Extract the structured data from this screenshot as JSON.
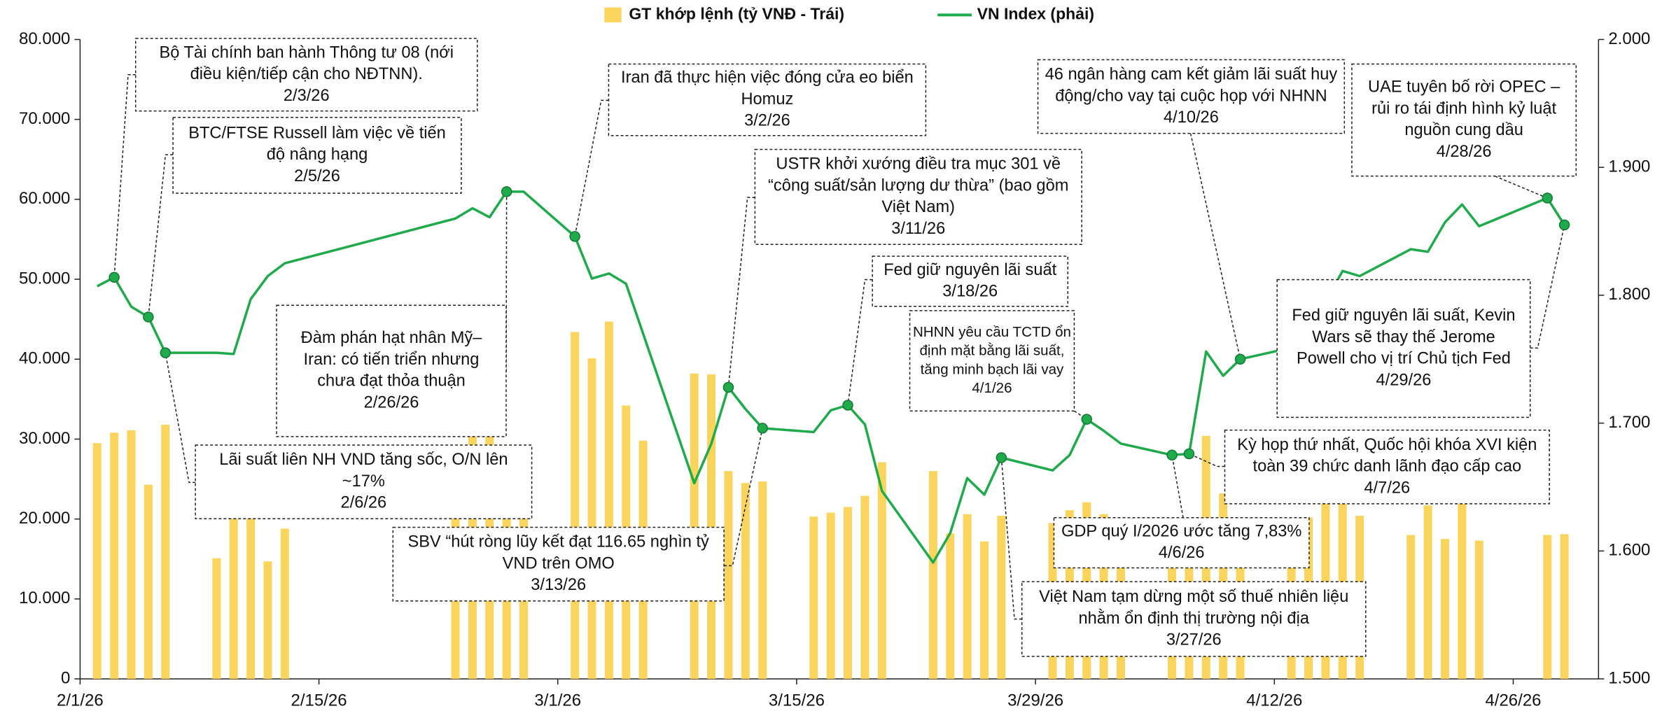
{
  "chart_data": {
    "type": "bar-line",
    "x": [
      "2/2/26",
      "2/3/26",
      "2/4/26",
      "2/5/26",
      "2/6/26",
      "2/9/26",
      "2/10/26",
      "2/11/26",
      "2/12/26",
      "2/13/26",
      "2/23/26",
      "2/24/26",
      "2/25/26",
      "2/26/26",
      "2/27/26",
      "3/2/26",
      "3/3/26",
      "3/4/26",
      "3/5/26",
      "3/6/26",
      "3/9/26",
      "3/10/26",
      "3/11/26",
      "3/12/26",
      "3/13/26",
      "3/16/26",
      "3/17/26",
      "3/18/26",
      "3/19/26",
      "3/20/26",
      "3/23/26",
      "3/24/26",
      "3/25/26",
      "3/26/26",
      "3/27/26",
      "3/30/26",
      "3/31/26",
      "4/1/26",
      "4/2/26",
      "4/3/26",
      "4/6/26",
      "4/7/26",
      "4/8/26",
      "4/9/26",
      "4/10/26",
      "4/13/26",
      "4/14/26",
      "4/15/26",
      "4/16/26",
      "4/17/26",
      "4/20/26",
      "4/21/26",
      "4/22/26",
      "4/23/26",
      "4/24/26",
      "4/28/26",
      "4/29/26"
    ],
    "series": [
      {
        "name": "GT khớp lệnh (tỷ VNĐ - Trái)",
        "color": "#fbd45e",
        "kind": "bar",
        "values": [
          29500,
          30800,
          31100,
          24300,
          31800,
          15100,
          23600,
          24000,
          14700,
          18800,
          22600,
          31200,
          35700,
          25000,
          27300,
          43400,
          40100,
          44700,
          34200,
          29800,
          38200,
          38100,
          26000,
          24500,
          24700,
          20300,
          20800,
          21500,
          22900,
          27100,
          26000,
          18200,
          20600,
          17200,
          20400,
          19500,
          21100,
          22100,
          20600,
          19000,
          14500,
          16000,
          30400,
          23200,
          19000,
          17500,
          20200,
          22000,
          24200,
          20400,
          18000,
          21700,
          17500,
          26900,
          17300,
          18000,
          18100
        ]
      },
      {
        "name": "VN Index (phải)",
        "color": "#1fab4b",
        "kind": "line",
        "axis": "y2",
        "values": [
          1807,
          1814,
          1791,
          1783,
          1755,
          1755,
          1754,
          1797,
          1815,
          1825,
          1860,
          1868,
          1861,
          1881,
          1881,
          1846,
          1813,
          1817,
          1809,
          1770,
          1653,
          1684,
          1728,
          1711,
          1696,
          1693,
          1710,
          1714,
          1699,
          1647,
          1591,
          1614,
          1657,
          1644,
          1673,
          1663,
          1675,
          1703,
          1694,
          1684,
          1675,
          1676,
          1756,
          1737,
          1750,
          1759,
          1776,
          1795,
          1819,
          1815,
          1836,
          1834,
          1857,
          1871,
          1854,
          1876,
          1855
        ]
      }
    ],
    "xlim": [
      "2/1/26",
      "5/1/26"
    ],
    "xticks": [
      "2/1/26",
      "2/15/26",
      "3/1/26",
      "3/15/26",
      "3/29/26",
      "4/12/26",
      "4/26/26"
    ],
    "ylim": [
      0,
      80000
    ],
    "yticks": [
      0,
      {
        "value": 10000,
        "label": "10.000"
      },
      {
        "value": 20000,
        "label": "20.000"
      },
      {
        "value": 30000,
        "label": "30.000"
      },
      {
        "value": 40000,
        "label": "40.000"
      },
      {
        "value": 50000,
        "label": "50.000"
      },
      {
        "value": 60000,
        "label": "60.000"
      },
      {
        "value": 70000,
        "label": "70.000"
      },
      {
        "value": 80000,
        "label": "80.000"
      }
    ],
    "y2lim": [
      1500,
      2000
    ],
    "y2ticks": [
      {
        "value": 1500,
        "label": "1.500"
      },
      {
        "value": 1600,
        "label": "1.600"
      },
      {
        "value": 1700,
        "label": "1.700"
      },
      {
        "value": 1800,
        "label": "1.800"
      },
      {
        "value": 1900,
        "label": "1.900"
      },
      {
        "value": 2000,
        "label": "2.000"
      }
    ],
    "annotations": [
      {
        "text": [
          "Bộ Tài chính ban hành Thông tư 08 (nới",
          "điều kiện/tiếp cận cho NĐTNN)."
        ],
        "date": "2/3/26"
      },
      {
        "text": [
          "BTC/FTSE Russell làm việc về tiến",
          "độ nâng hạng"
        ],
        "date": "2/5/26"
      },
      {
        "text": [
          "Lãi suất liên NH VND tăng sốc, O/N lên",
          "~17%"
        ],
        "date": "2/6/26"
      },
      {
        "text": [
          "Đàm phán hạt nhân Mỹ–",
          "Iran: có tiến triển nhưng",
          "chưa đạt thỏa thuận"
        ],
        "date": "2/26/26"
      },
      {
        "text": [
          "Iran đã thực hiện việc đóng cửa eo biển",
          "Homuz"
        ],
        "date": "3/2/26"
      },
      {
        "text": [
          "USTR khởi xướng điều tra mục 301 về",
          "“công suất/sản lượng dư thừa” (bao gồm",
          "Việt Nam)"
        ],
        "date": "3/11/26"
      },
      {
        "text": [
          "SBV “hút ròng lũy kết đạt 116.65 nghìn tỷ",
          "VND trên OMO"
        ],
        "date": "3/13/26"
      },
      {
        "text": [
          "Fed giữ nguyên lãi suất"
        ],
        "date": "3/18/26"
      },
      {
        "text": [
          "NHNN yêu cầu TCTD ổn",
          "định mặt bằng lãi suất,",
          "tăng minh bạch lãi vay"
        ],
        "date": "4/1/26"
      },
      {
        "text": [
          "Việt Nam tạm dừng một số thuế nhiên liệu",
          "nhằm ổn định thị trường nội địa"
        ],
        "date": "3/27/26"
      },
      {
        "text": [
          "GDP quý I/2026 ước tăng 7,83%"
        ],
        "date": "4/6/26"
      },
      {
        "text": [
          "Kỳ họp thứ nhất, Quốc hội khóa XVI kiện",
          "toàn 39 chức danh lãnh đạo cấp cao"
        ],
        "date": "4/7/26"
      },
      {
        "text": [
          "46 ngân hàng cam kết giảm lãi suất huy",
          "động/cho vay tại cuộc họp với NHNN"
        ],
        "date": "4/10/26"
      },
      {
        "text": [
          "UAE tuyên bố rời OPEC –",
          "rủi ro tái định hình kỷ luật",
          "nguồn cung dầu"
        ],
        "date": "4/28/26"
      },
      {
        "text": [
          "Fed giữ nguyên lãi suất,  Kevin",
          "Wars sẽ thay thế Jerome",
          "Powell cho vị trí Chủ tịch Fed"
        ],
        "date": "4/29/26"
      }
    ]
  }
}
